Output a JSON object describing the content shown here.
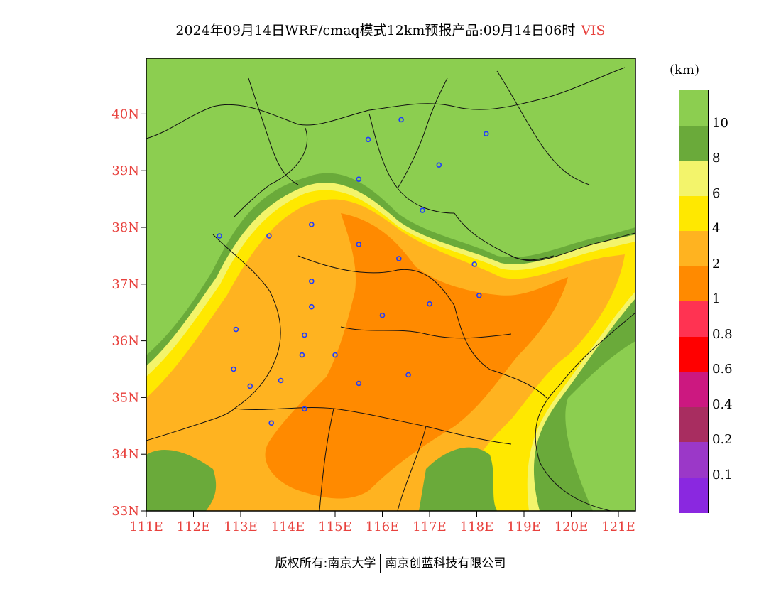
{
  "title": {
    "text": "2024年09月14日WRF/cmaq模式12km预报产品:09月14日06时",
    "variable": "VIS"
  },
  "legend": {
    "unit": "(km)",
    "colors": [
      "#8cce50",
      "#6aaa3a",
      "#f3f46b",
      "#ffe800",
      "#ffb320",
      "#ff8a00",
      "#ff3352",
      "#ff0000",
      "#cc1880",
      "#a82d60",
      "#9b38c8",
      "#8a28e0"
    ],
    "labels": [
      "10",
      "8",
      "6",
      "4",
      "2",
      "1",
      "0.8",
      "0.6",
      "0.4",
      "0.2",
      "0.1"
    ]
  },
  "axes": {
    "lat_labels": [
      "33N",
      "34N",
      "35N",
      "36N",
      "37N",
      "38N",
      "39N",
      "40N"
    ],
    "lon_labels": [
      "111E",
      "112E",
      "113E",
      "114E",
      "115E",
      "116E",
      "117E",
      "118E",
      "119E",
      "120E",
      "121E"
    ]
  },
  "cities": [
    [
      116.4,
      39.9
    ],
    [
      115.7,
      39.55
    ],
    [
      117.2,
      39.1
    ],
    [
      118.2,
      39.65
    ],
    [
      115.5,
      38.85
    ],
    [
      116.85,
      38.3
    ],
    [
      112.55,
      37.85
    ],
    [
      113.6,
      37.85
    ],
    [
      114.5,
      38.05
    ],
    [
      115.5,
      37.7
    ],
    [
      116.35,
      37.45
    ],
    [
      117.95,
      37.35
    ],
    [
      114.5,
      37.05
    ],
    [
      114.5,
      36.6
    ],
    [
      116.0,
      36.45
    ],
    [
      117.0,
      36.65
    ],
    [
      118.05,
      36.8
    ],
    [
      112.9,
      36.2
    ],
    [
      114.35,
      36.1
    ],
    [
      115.0,
      35.75
    ],
    [
      114.3,
      35.75
    ],
    [
      112.85,
      35.5
    ],
    [
      113.2,
      35.2
    ],
    [
      113.85,
      35.3
    ],
    [
      115.5,
      35.25
    ],
    [
      116.55,
      35.4
    ],
    [
      114.35,
      34.8
    ],
    [
      113.65,
      34.55
    ]
  ],
  "footer": {
    "left": "版权所有:南京大学",
    "right": "南京创蓝科技有限公司"
  }
}
